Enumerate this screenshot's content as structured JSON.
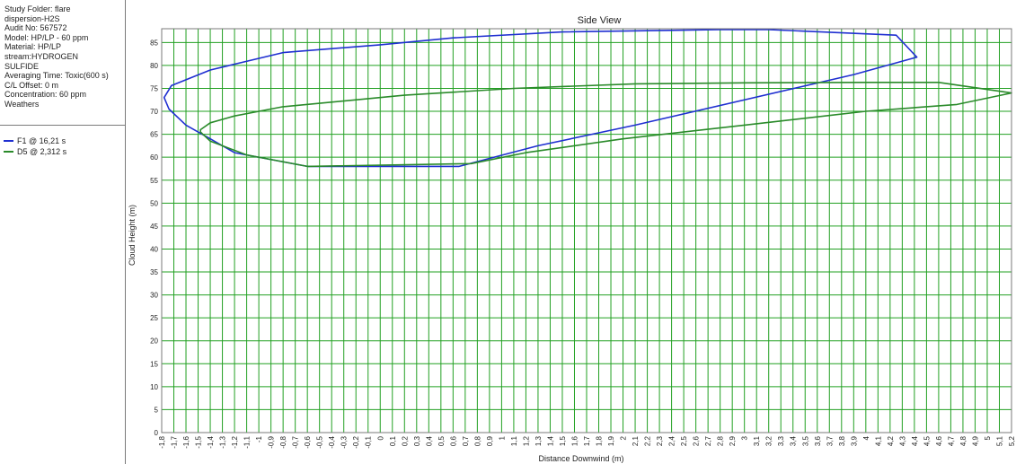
{
  "info": {
    "lines": [
      "Study Folder: flare",
      "dispersion-H2S",
      "Audit No: 567572",
      "Model: HP/LP - 60 ppm",
      "Material: HP/LP",
      "stream:HYDROGEN",
      "SULFIDE",
      "Averaging Time: Toxic(600 s)",
      "C/L Offset: 0 m",
      "Concentration: 60 ppm",
      "Weathers"
    ]
  },
  "colors": {
    "grid": "#22a022",
    "f1": "#1f2fd1",
    "d5": "#2a8a2a"
  },
  "chart_data": {
    "type": "line",
    "title": "Side View",
    "xlabel": "Distance Downwind (m)",
    "ylabel": "Cloud Height (m)",
    "xlim": [
      -1.8,
      5.2
    ],
    "ylim": [
      0,
      88
    ],
    "x_ticks": [
      "-1,8",
      "-1,7",
      "-1,6",
      "-1,5",
      "-1,4",
      "-1,3",
      "-1,2",
      "-1,1",
      "-1",
      "-0,9",
      "-0,8",
      "-0,7",
      "-0,6",
      "-0,5",
      "-0,4",
      "-0,3",
      "-0,2",
      "-0,1",
      "0",
      "0,1",
      "0,2",
      "0,3",
      "0,4",
      "0,5",
      "0,6",
      "0,7",
      "0,8",
      "0,9",
      "1",
      "1,1",
      "1,2",
      "1,3",
      "1,4",
      "1,5",
      "1,6",
      "1,7",
      "1,8",
      "1,9",
      "2",
      "2,1",
      "2,2",
      "2,3",
      "2,4",
      "2,5",
      "2,6",
      "2,7",
      "2,8",
      "2,9",
      "3",
      "3,1",
      "3,2",
      "3,3",
      "3,4",
      "3,5",
      "3,6",
      "3,7",
      "3,8",
      "3,9",
      "4",
      "4,1",
      "4,2",
      "4,3",
      "4,4",
      "4,5",
      "4,6",
      "4,7",
      "4,8",
      "4,9",
      "5",
      "5,1",
      "5,2"
    ],
    "y_ticks": [
      0,
      5,
      10,
      15,
      20,
      25,
      30,
      35,
      40,
      45,
      50,
      55,
      60,
      65,
      70,
      75,
      80,
      85
    ],
    "grid": true,
    "legend_position": "left-panel",
    "series": [
      {
        "name": "F1 @ 16,21 s",
        "x": [
          -0.6,
          -1.2,
          -1.4,
          -1.6,
          -1.74,
          -1.78,
          -1.72,
          -1.4,
          -0.8,
          0,
          0.6,
          1.5,
          2.8,
          3.2,
          4.25,
          4.42,
          3.9,
          2.1,
          1.3,
          0.65,
          -0.6
        ],
        "y": [
          58,
          61,
          64,
          67,
          70.5,
          73,
          75.6,
          79,
          82.8,
          84.5,
          86,
          87.3,
          87.8,
          87.8,
          86.6,
          81.8,
          78,
          67,
          62.5,
          58,
          58
        ]
      },
      {
        "name": "D5 @ 2,312 s",
        "x": [
          -0.6,
          -1.1,
          -1.4,
          -1.48,
          -1.48,
          -1.4,
          -1.2,
          -0.8,
          0.2,
          1.1,
          2.1,
          3.0,
          4.0,
          4.6,
          5.2,
          4.75,
          4.0,
          3.0,
          2.0,
          1.2,
          0.75,
          -0.6
        ],
        "y": [
          58,
          60.5,
          63.5,
          65.5,
          66,
          67.5,
          69,
          71,
          73.5,
          75,
          76,
          76.2,
          76.3,
          76.3,
          74,
          71.5,
          70,
          67,
          64,
          61,
          58.6,
          58
        ]
      }
    ]
  }
}
